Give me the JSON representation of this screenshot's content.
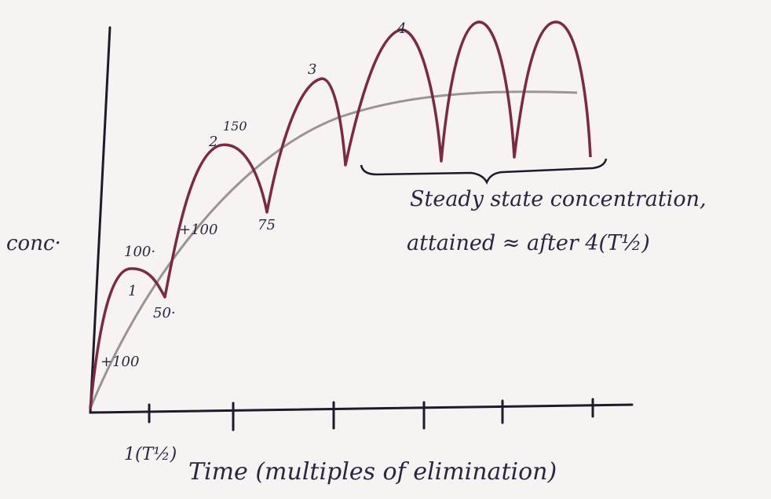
{
  "y_axis_label": "conc·",
  "x_axis_label": "Time (multiples of elimination)",
  "x_tick_label": "1(T½)",
  "annotations": [
    "+100",
    "100·",
    "1",
    "50·",
    "+100",
    "2",
    "150",
    "75",
    "3",
    "4"
  ],
  "note": {
    "line1": "Steady state concentration,",
    "line2": "attained ≈ after 4(T½)"
  }
}
